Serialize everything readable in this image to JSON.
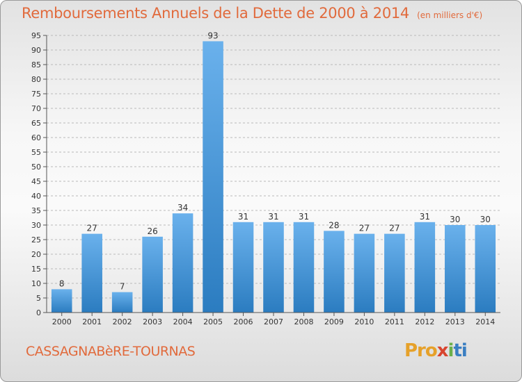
{
  "header": {
    "title": "Remboursements Annuels de la Dette de 2000 à 2014",
    "unit": "(en milliers d'€)"
  },
  "footer": {
    "commune": "CASSAGNABèRE-TOURNAS",
    "logo": {
      "p1": "Pro",
      "p2": "x",
      "p3": "i",
      "p4": "ti"
    }
  },
  "chart_data": {
    "type": "bar",
    "title": "Remboursements Annuels de la Dette de 2000 à 2014",
    "subtitle": "(en milliers d'€)",
    "categories": [
      "2000",
      "2001",
      "2002",
      "2003",
      "2004",
      "2005",
      "2006",
      "2007",
      "2008",
      "2009",
      "2010",
      "2011",
      "2012",
      "2013",
      "2014"
    ],
    "values": [
      8,
      27,
      7,
      26,
      34,
      93,
      31,
      31,
      31,
      28,
      27,
      27,
      31,
      30,
      30
    ],
    "ylim": [
      0,
      95
    ],
    "yticks": [
      0,
      5,
      10,
      15,
      20,
      25,
      30,
      35,
      40,
      45,
      50,
      55,
      60,
      65,
      70,
      75,
      80,
      85,
      90,
      95
    ],
    "grid": true,
    "colors": {
      "bar_light": "#6ab1ec",
      "bar_dark": "#2b7cc0",
      "grid": "#b9b9b9",
      "axis": "#555555"
    }
  }
}
